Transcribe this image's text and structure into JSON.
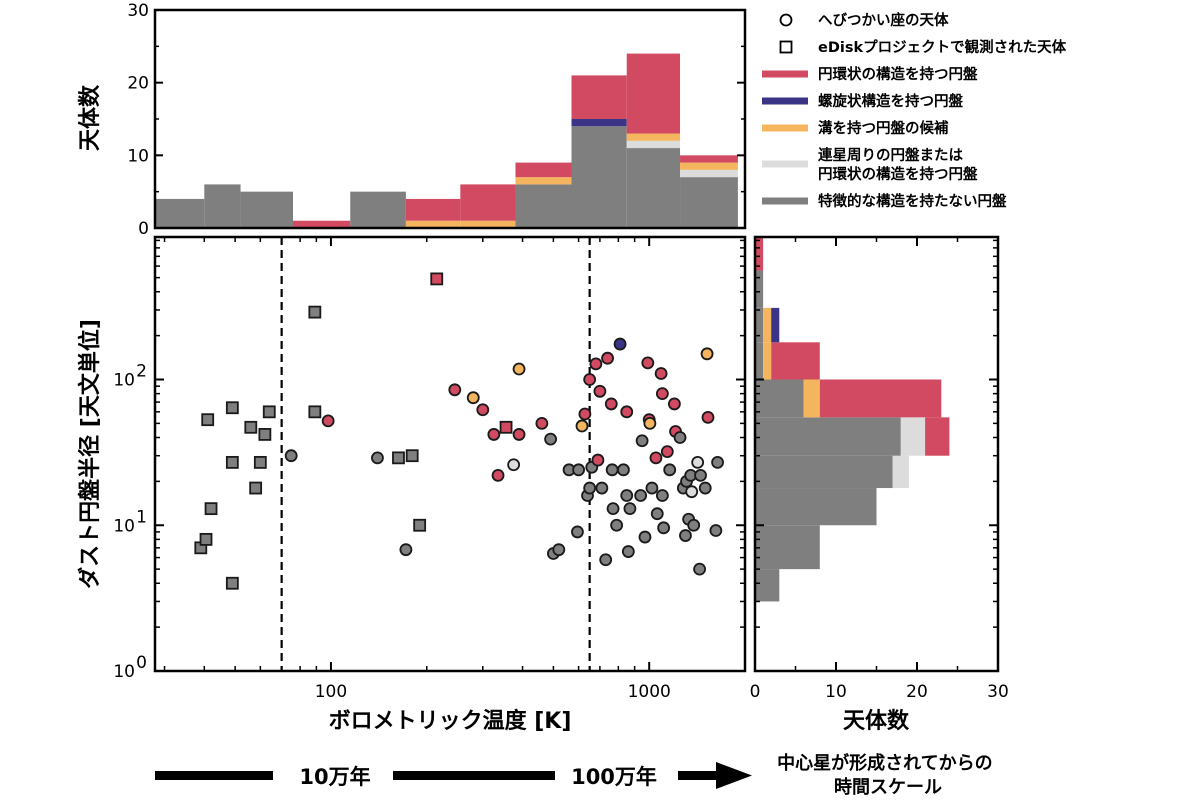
{
  "chart_data": [
    {
      "panel": "top-histogram",
      "type": "bar",
      "ylabel": "天体数",
      "ylim": [
        0,
        30
      ],
      "yticks": [
        0,
        10,
        20,
        30
      ],
      "x_scale": "log",
      "bins": [
        [
          28,
          40
        ],
        [
          40,
          52
        ],
        [
          52,
          76
        ],
        [
          76,
          115
        ],
        [
          115,
          172
        ],
        [
          172,
          255
        ],
        [
          255,
          380
        ],
        [
          380,
          570
        ],
        [
          570,
          850
        ],
        [
          850,
          1250
        ],
        [
          1250,
          1900
        ]
      ],
      "series": [
        {
          "name": "特徴的な構造を持たない円盤",
          "values": [
            4,
            6,
            5,
            0,
            5,
            0,
            0,
            6,
            14,
            11,
            7
          ]
        },
        {
          "name": "連星周りの円盤または\n円環状の構造を持つ円盤",
          "values": [
            0,
            0,
            0,
            0,
            0,
            0,
            0,
            0,
            0,
            1,
            1
          ]
        },
        {
          "name": "溝を持つ円盤の候補",
          "values": [
            0,
            0,
            0,
            0,
            0,
            1,
            1,
            1,
            0,
            1,
            1
          ]
        },
        {
          "name": "螺旋状構造を持つ円盤",
          "values": [
            0,
            0,
            0,
            0,
            0,
            0,
            0,
            0,
            1,
            0,
            0
          ]
        },
        {
          "name": "円環状の構造を持つ円盤",
          "values": [
            0,
            0,
            0,
            1,
            0,
            3,
            5,
            2,
            6,
            11,
            1
          ]
        }
      ]
    },
    {
      "panel": "main-scatter",
      "type": "scatter",
      "xlabel": "ボロメトリック温度 [K]",
      "ylabel": "ダスト円盤半径 [天文単位]",
      "x_scale": "log",
      "y_scale": "log",
      "xlim": [
        28,
        2000
      ],
      "ylim": [
        1,
        950
      ],
      "xticks": [
        {
          "value": 100,
          "label": "100"
        },
        {
          "value": 1000,
          "label": "1000"
        }
      ],
      "yticks": [
        {
          "value": 1,
          "base": "10",
          "exp": "0"
        },
        {
          "value": 10,
          "base": "10",
          "exp": "1"
        },
        {
          "value": 100,
          "base": "10",
          "exp": "2"
        }
      ],
      "vlines": [
        70,
        650
      ],
      "marker_legend": {
        "circle": "へびつかい座の天体",
        "square": "eDiskプロジェクトで観測された天体"
      },
      "categories": {
        "ring": "円環状の構造を持つ円盤",
        "spiral": "螺旋状構造を持つ円盤",
        "gap": "溝を持つ円盤の候補",
        "binary": "連星周りの円盤または\n円環状の構造を持つ円盤",
        "none": "特徴的な構造を持たない円盤"
      },
      "points": [
        {
          "x": 39,
          "y": 7,
          "marker": "square",
          "cat": "none"
        },
        {
          "x": 40.5,
          "y": 8,
          "marker": "square",
          "cat": "none"
        },
        {
          "x": 41,
          "y": 53,
          "marker": "square",
          "cat": "none"
        },
        {
          "x": 42,
          "y": 13,
          "marker": "square",
          "cat": "none"
        },
        {
          "x": 49,
          "y": 4,
          "marker": "square",
          "cat": "none"
        },
        {
          "x": 49,
          "y": 27,
          "marker": "square",
          "cat": "none"
        },
        {
          "x": 49,
          "y": 64,
          "marker": "square",
          "cat": "none"
        },
        {
          "x": 56,
          "y": 47,
          "marker": "square",
          "cat": "none"
        },
        {
          "x": 58,
          "y": 18,
          "marker": "square",
          "cat": "none"
        },
        {
          "x": 60,
          "y": 27,
          "marker": "square",
          "cat": "none"
        },
        {
          "x": 62,
          "y": 42,
          "marker": "square",
          "cat": "none"
        },
        {
          "x": 64,
          "y": 60,
          "marker": "square",
          "cat": "none"
        },
        {
          "x": 89,
          "y": 60,
          "marker": "square",
          "cat": "none"
        },
        {
          "x": 89,
          "y": 290,
          "marker": "square",
          "cat": "none"
        },
        {
          "x": 163,
          "y": 29,
          "marker": "square",
          "cat": "none"
        },
        {
          "x": 180,
          "y": 30,
          "marker": "square",
          "cat": "none"
        },
        {
          "x": 190,
          "y": 10,
          "marker": "square",
          "cat": "none"
        },
        {
          "x": 215,
          "y": 490,
          "marker": "square",
          "cat": "ring"
        },
        {
          "x": 355,
          "y": 47,
          "marker": "square",
          "cat": "ring"
        },
        {
          "x": 75,
          "y": 30,
          "marker": "circle",
          "cat": "none"
        },
        {
          "x": 98,
          "y": 52,
          "marker": "circle",
          "cat": "ring"
        },
        {
          "x": 140,
          "y": 29,
          "marker": "circle",
          "cat": "none"
        },
        {
          "x": 172,
          "y": 6.8,
          "marker": "circle",
          "cat": "none"
        },
        {
          "x": 245,
          "y": 85,
          "marker": "circle",
          "cat": "ring"
        },
        {
          "x": 280,
          "y": 75,
          "marker": "circle",
          "cat": "gap"
        },
        {
          "x": 300,
          "y": 62,
          "marker": "circle",
          "cat": "ring"
        },
        {
          "x": 325,
          "y": 42,
          "marker": "circle",
          "cat": "ring"
        },
        {
          "x": 335,
          "y": 22,
          "marker": "circle",
          "cat": "ring"
        },
        {
          "x": 375,
          "y": 26,
          "marker": "circle",
          "cat": "binary"
        },
        {
          "x": 390,
          "y": 42,
          "marker": "circle",
          "cat": "ring"
        },
        {
          "x": 390,
          "y": 118,
          "marker": "circle",
          "cat": "gap"
        },
        {
          "x": 460,
          "y": 50,
          "marker": "circle",
          "cat": "ring"
        },
        {
          "x": 490,
          "y": 39,
          "marker": "circle",
          "cat": "none"
        },
        {
          "x": 500,
          "y": 6.4,
          "marker": "circle",
          "cat": "none"
        },
        {
          "x": 520,
          "y": 6.8,
          "marker": "circle",
          "cat": "none"
        },
        {
          "x": 560,
          "y": 24,
          "marker": "circle",
          "cat": "none"
        },
        {
          "x": 595,
          "y": 9,
          "marker": "circle",
          "cat": "none"
        },
        {
          "x": 600,
          "y": 24,
          "marker": "circle",
          "cat": "none"
        },
        {
          "x": 615,
          "y": 48,
          "marker": "circle",
          "cat": "gap"
        },
        {
          "x": 628,
          "y": 58,
          "marker": "circle",
          "cat": "ring"
        },
        {
          "x": 640,
          "y": 16,
          "marker": "circle",
          "cat": "none"
        },
        {
          "x": 650,
          "y": 18,
          "marker": "circle",
          "cat": "none"
        },
        {
          "x": 660,
          "y": 25,
          "marker": "circle",
          "cat": "none"
        },
        {
          "x": 650,
          "y": 100,
          "marker": "circle",
          "cat": "ring"
        },
        {
          "x": 680,
          "y": 128,
          "marker": "circle",
          "cat": "ring"
        },
        {
          "x": 690,
          "y": 28,
          "marker": "circle",
          "cat": "ring"
        },
        {
          "x": 700,
          "y": 83,
          "marker": "circle",
          "cat": "ring"
        },
        {
          "x": 710,
          "y": 18,
          "marker": "circle",
          "cat": "none"
        },
        {
          "x": 730,
          "y": 5.8,
          "marker": "circle",
          "cat": "none"
        },
        {
          "x": 740,
          "y": 140,
          "marker": "circle",
          "cat": "ring"
        },
        {
          "x": 760,
          "y": 68,
          "marker": "circle",
          "cat": "ring"
        },
        {
          "x": 765,
          "y": 24,
          "marker": "circle",
          "cat": "none"
        },
        {
          "x": 770,
          "y": 13,
          "marker": "circle",
          "cat": "none"
        },
        {
          "x": 790,
          "y": 10,
          "marker": "circle",
          "cat": "none"
        },
        {
          "x": 810,
          "y": 175,
          "marker": "circle",
          "cat": "spiral"
        },
        {
          "x": 830,
          "y": 24,
          "marker": "circle",
          "cat": "none"
        },
        {
          "x": 850,
          "y": 60,
          "marker": "circle",
          "cat": "ring"
        },
        {
          "x": 850,
          "y": 16,
          "marker": "circle",
          "cat": "none"
        },
        {
          "x": 860,
          "y": 6.6,
          "marker": "circle",
          "cat": "none"
        },
        {
          "x": 870,
          "y": 13,
          "marker": "circle",
          "cat": "none"
        },
        {
          "x": 940,
          "y": 16,
          "marker": "circle",
          "cat": "none"
        },
        {
          "x": 950,
          "y": 38,
          "marker": "circle",
          "cat": "none"
        },
        {
          "x": 970,
          "y": 8.3,
          "marker": "circle",
          "cat": "none"
        },
        {
          "x": 990,
          "y": 130,
          "marker": "circle",
          "cat": "ring"
        },
        {
          "x": 1000,
          "y": 53,
          "marker": "circle",
          "cat": "ring"
        },
        {
          "x": 1005,
          "y": 50,
          "marker": "circle",
          "cat": "gap"
        },
        {
          "x": 1020,
          "y": 18,
          "marker": "circle",
          "cat": "none"
        },
        {
          "x": 1050,
          "y": 29,
          "marker": "circle",
          "cat": "ring"
        },
        {
          "x": 1060,
          "y": 12,
          "marker": "circle",
          "cat": "none"
        },
        {
          "x": 1090,
          "y": 110,
          "marker": "circle",
          "cat": "ring"
        },
        {
          "x": 1100,
          "y": 80,
          "marker": "circle",
          "cat": "ring"
        },
        {
          "x": 1100,
          "y": 16,
          "marker": "circle",
          "cat": "none"
        },
        {
          "x": 1110,
          "y": 9.6,
          "marker": "circle",
          "cat": "none"
        },
        {
          "x": 1140,
          "y": 32,
          "marker": "circle",
          "cat": "ring"
        },
        {
          "x": 1160,
          "y": 24,
          "marker": "circle",
          "cat": "none"
        },
        {
          "x": 1200,
          "y": 68,
          "marker": "circle",
          "cat": "ring"
        },
        {
          "x": 1210,
          "y": 44,
          "marker": "circle",
          "cat": "ring"
        },
        {
          "x": 1250,
          "y": 40,
          "marker": "circle",
          "cat": "none"
        },
        {
          "x": 1280,
          "y": 18,
          "marker": "circle",
          "cat": "none"
        },
        {
          "x": 1300,
          "y": 8.5,
          "marker": "circle",
          "cat": "none"
        },
        {
          "x": 1310,
          "y": 20,
          "marker": "circle",
          "cat": "none"
        },
        {
          "x": 1330,
          "y": 11,
          "marker": "circle",
          "cat": "none"
        },
        {
          "x": 1350,
          "y": 22,
          "marker": "circle",
          "cat": "none"
        },
        {
          "x": 1360,
          "y": 17,
          "marker": "circle",
          "cat": "binary"
        },
        {
          "x": 1380,
          "y": 10,
          "marker": "circle",
          "cat": "none"
        },
        {
          "x": 1420,
          "y": 27,
          "marker": "circle",
          "cat": "binary"
        },
        {
          "x": 1440,
          "y": 5,
          "marker": "circle",
          "cat": "none"
        },
        {
          "x": 1450,
          "y": 22,
          "marker": "circle",
          "cat": "none"
        },
        {
          "x": 1500,
          "y": 18,
          "marker": "circle",
          "cat": "none"
        },
        {
          "x": 1520,
          "y": 150,
          "marker": "circle",
          "cat": "gap"
        },
        {
          "x": 1530,
          "y": 55,
          "marker": "circle",
          "cat": "ring"
        },
        {
          "x": 1620,
          "y": 9.2,
          "marker": "circle",
          "cat": "none"
        },
        {
          "x": 1640,
          "y": 27,
          "marker": "circle",
          "cat": "none"
        }
      ]
    },
    {
      "panel": "right-histogram",
      "type": "bar",
      "orientation": "horizontal",
      "xlabel": "天体数",
      "xlim": [
        0,
        30
      ],
      "xticks": [
        0,
        10,
        20,
        30
      ],
      "y_scale": "log",
      "bins": [
        [
          3,
          5
        ],
        [
          5,
          10
        ],
        [
          10,
          18
        ],
        [
          18,
          30
        ],
        [
          30,
          55
        ],
        [
          55,
          100
        ],
        [
          100,
          180
        ],
        [
          180,
          310
        ],
        [
          310,
          560
        ],
        [
          560,
          1000
        ]
      ],
      "series": [
        {
          "name": "特徴的な構造を持たない円盤",
          "values": [
            3,
            8,
            15,
            17,
            18,
            6,
            1,
            1,
            1,
            0
          ]
        },
        {
          "name": "連星周りの円盤または\n円環状の構造を持つ円盤",
          "values": [
            0,
            0,
            0,
            2,
            3,
            0,
            0,
            0,
            0,
            0
          ]
        },
        {
          "name": "溝を持つ円盤の候補",
          "values": [
            0,
            0,
            0,
            0,
            0,
            2,
            1,
            1,
            0,
            0
          ]
        },
        {
          "name": "螺旋状構造を持つ円盤",
          "values": [
            0,
            0,
            0,
            0,
            0,
            0,
            0,
            1,
            0,
            0
          ]
        },
        {
          "name": "円環状の構造を持つ円盤",
          "values": [
            0,
            0,
            0,
            0,
            3,
            15,
            6,
            0,
            0,
            1
          ]
        }
      ]
    }
  ],
  "colors": {
    "none": "#7f7f7f",
    "binary": "#dcdcdc",
    "gap": "#f4b55e",
    "spiral": "#3b3486",
    "ring": "#d24a61",
    "edge": "#1a1a1a"
  },
  "legend": {
    "items": [
      {
        "key": "circle",
        "label": "へびつかい座の天体"
      },
      {
        "key": "square",
        "label": "eDiskプロジェクトで観測された天体"
      },
      {
        "key": "ring",
        "label": "円環状の構造を持つ円盤"
      },
      {
        "key": "spiral",
        "label": "螺旋状構造を持つ円盤"
      },
      {
        "key": "gap",
        "label": "溝を持つ円盤の候補"
      },
      {
        "key": "binary",
        "label": "連星周りの円盤または\n円環状の構造を持つ円盤"
      },
      {
        "key": "none",
        "label": "特徴的な構造を持たない円盤"
      }
    ]
  },
  "timeline": {
    "label_1": "10万年",
    "label_2": "100万年",
    "note": "中心星が形成されてからの\n時間スケール"
  }
}
